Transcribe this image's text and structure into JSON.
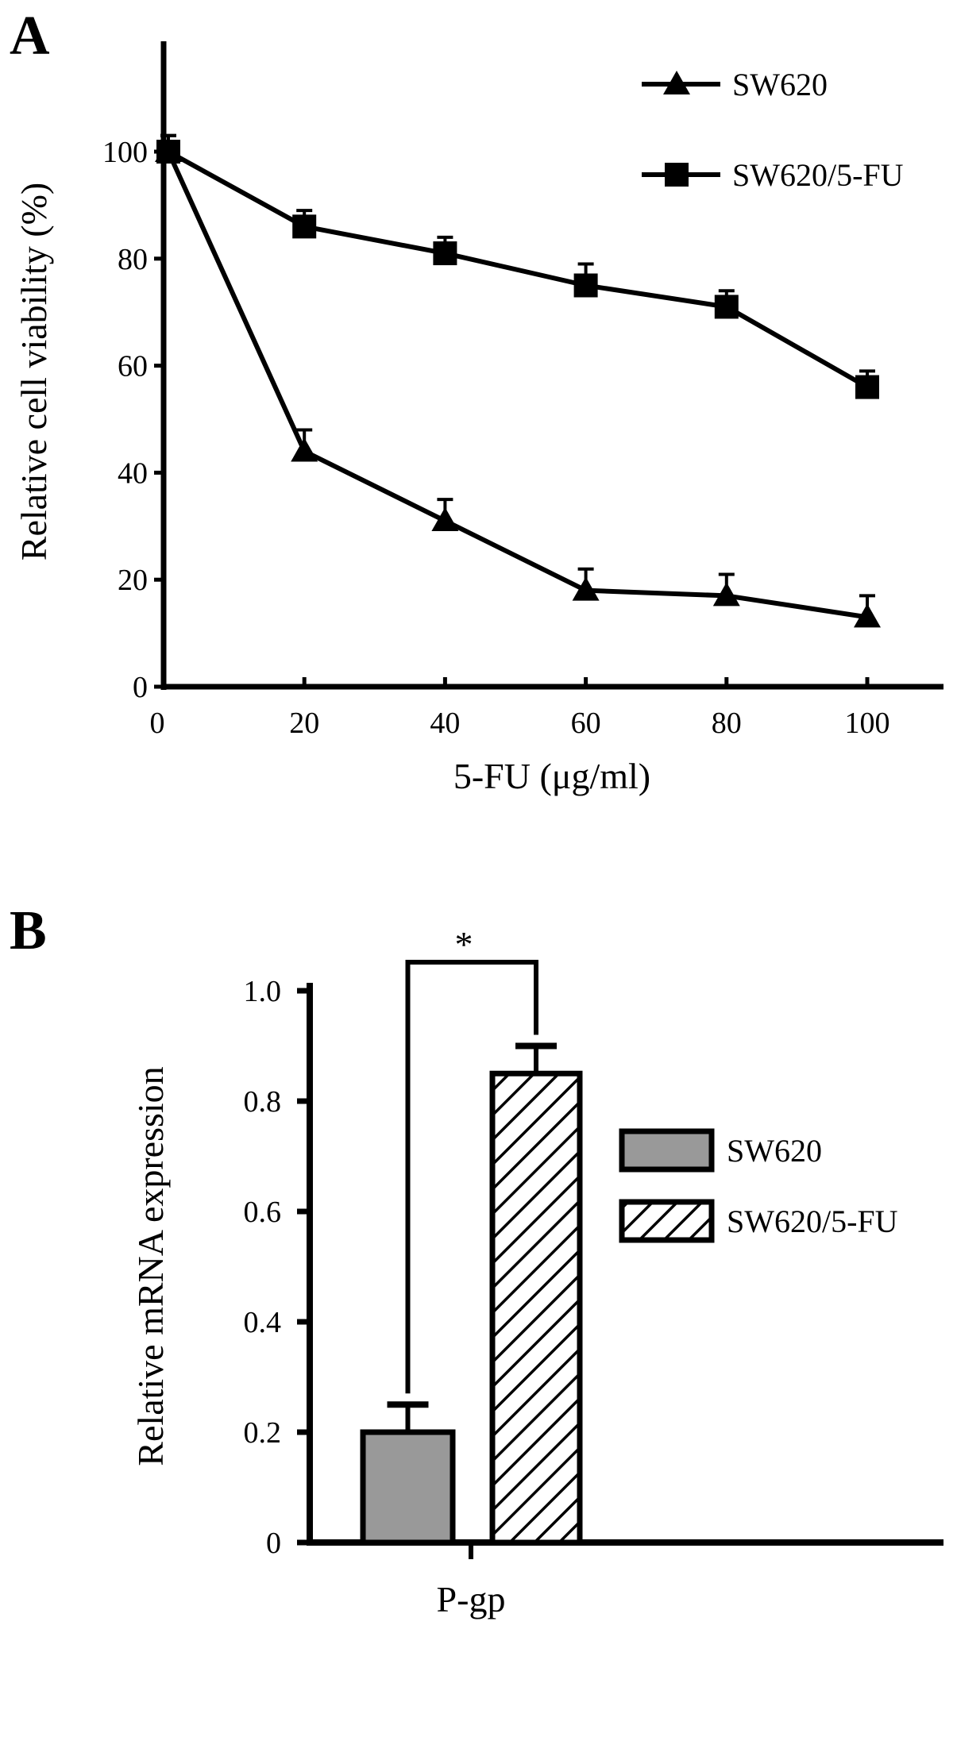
{
  "chart_data": [
    {
      "panel_label": "A",
      "type": "line",
      "xlabel": "5-FU (μg/ml)",
      "ylabel": "Relative cell viability (%)",
      "x": [
        0,
        20,
        40,
        60,
        80,
        100
      ],
      "xlim": [
        0,
        110
      ],
      "ylim": [
        0,
        115
      ],
      "xticks": [
        "0",
        "20",
        "40",
        "60",
        "80",
        "100"
      ],
      "yticks": [
        "0",
        "20",
        "40",
        "60",
        "80",
        "100"
      ],
      "grid": false,
      "legend_position": "top-right",
      "series": [
        {
          "name": "SW620",
          "marker": "triangle",
          "values": [
            100,
            44,
            31,
            18,
            17,
            13
          ],
          "errors": [
            3,
            4,
            4,
            4,
            4,
            4
          ]
        },
        {
          "name": "SW620/5-FU",
          "marker": "square",
          "values": [
            100,
            86,
            81,
            75,
            71,
            56
          ],
          "errors": [
            3,
            3,
            3,
            4,
            3,
            3
          ]
        }
      ]
    },
    {
      "panel_label": "B",
      "type": "bar",
      "xlabel": "",
      "ylabel": "Relative mRNA expression",
      "categories": [
        "P-gp"
      ],
      "ylim": [
        0,
        1.0
      ],
      "yticks": [
        "0",
        "0.2",
        "0.4",
        "0.6",
        "0.8",
        "1.0"
      ],
      "grid": false,
      "legend_position": "right",
      "significance": "*",
      "series": [
        {
          "name": "SW620",
          "fill": "#999999",
          "pattern": "solid",
          "values": [
            0.2
          ],
          "errors": [
            0.05
          ]
        },
        {
          "name": "SW620/5-FU",
          "fill": "#ffffff",
          "pattern": "diagonal-hatch",
          "values": [
            0.85
          ],
          "errors": [
            0.05
          ]
        }
      ]
    }
  ]
}
